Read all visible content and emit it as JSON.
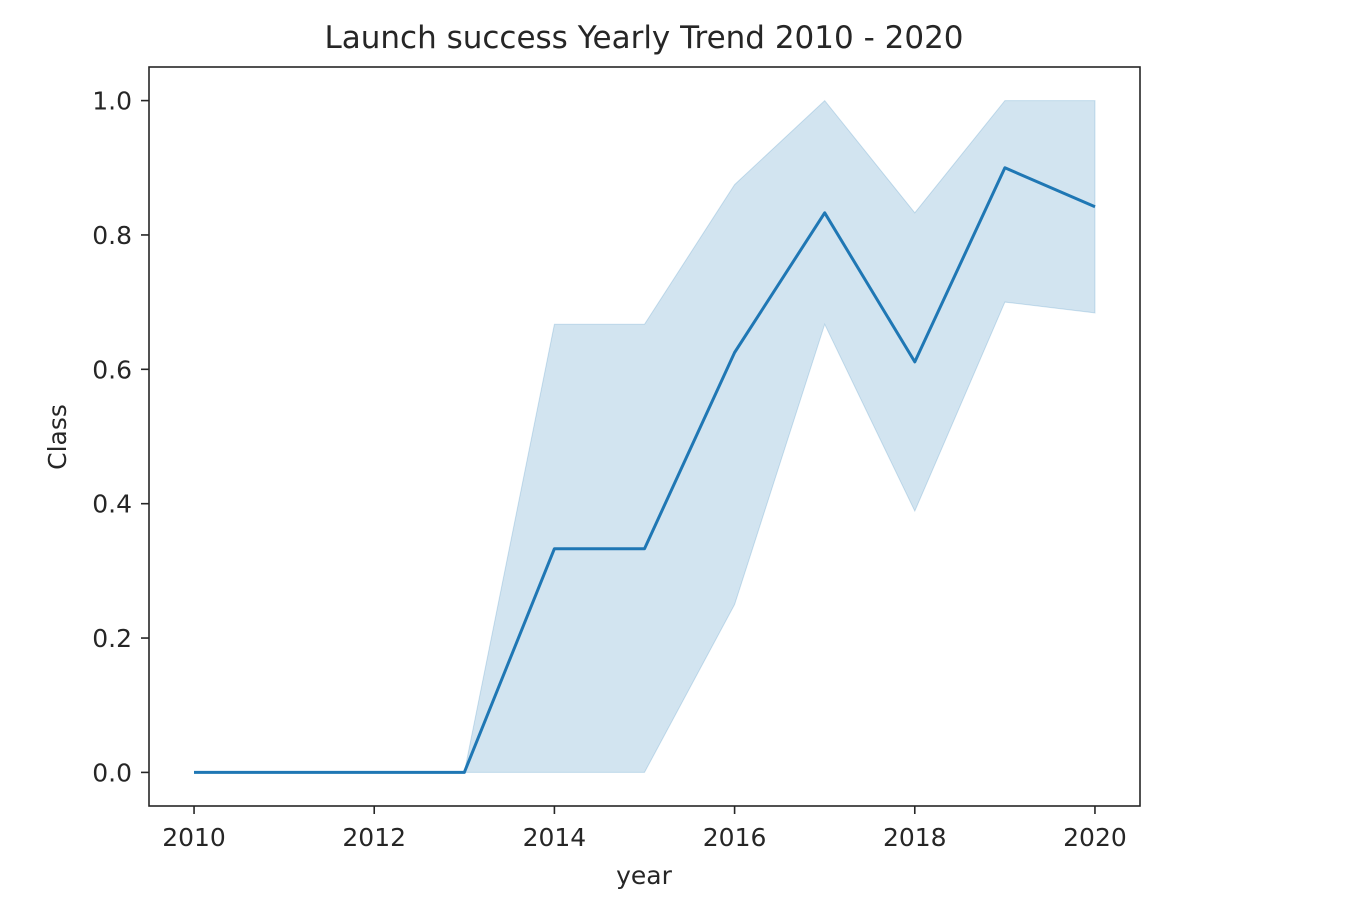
{
  "chart_data": {
    "type": "line",
    "title": "Launch success Yearly Trend 2010 - 2020",
    "xlabel": "year",
    "ylabel": "Class",
    "x": [
      2010,
      2012,
      2013,
      2014,
      2015,
      2016,
      2017,
      2018,
      2019,
      2020
    ],
    "series": [
      {
        "values": [
          0.0,
          0.0,
          0.0,
          0.333,
          0.333,
          0.625,
          0.833,
          0.611,
          0.9,
          0.842
        ],
        "ci_lower": [
          0.0,
          0.0,
          0.0,
          0.0,
          0.0,
          0.25,
          0.667,
          0.389,
          0.7,
          0.684
        ],
        "ci_upper": [
          0.0,
          0.0,
          0.0,
          0.667,
          0.667,
          0.875,
          1.0,
          0.833,
          1.0,
          1.0
        ],
        "color": "#1f77b4"
      }
    ],
    "xticks": [
      "2010",
      "2012",
      "2014",
      "2016",
      "2018",
      "2020"
    ],
    "yticks": [
      "0.0",
      "0.2",
      "0.4",
      "0.6",
      "0.8",
      "1.0"
    ],
    "xlim": [
      2009.5,
      2020.5
    ],
    "ylim": [
      -0.05,
      1.05
    ],
    "grid": false,
    "legend": "none",
    "band_color": "#1f77b4",
    "band_opacity": 0.2
  }
}
